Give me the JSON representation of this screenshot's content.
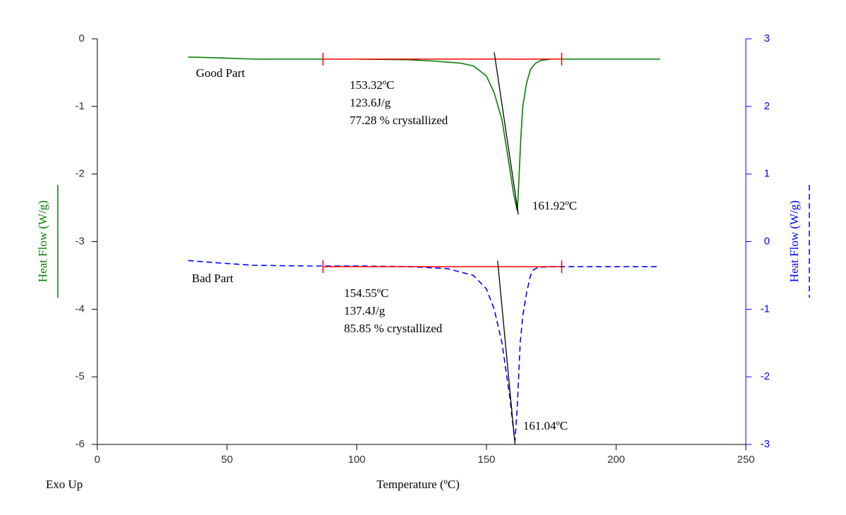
{
  "chart_data": {
    "type": "line",
    "x_label": "Temperature (ºC)",
    "y_label": "Heat Flow (W/g)",
    "y2_label": "Heat Flow (W/g)",
    "corner_note": "Exo Up",
    "xlim": [
      0,
      250
    ],
    "xticks": [
      0,
      50,
      100,
      150,
      200,
      250
    ],
    "ylim": [
      -6,
      0
    ],
    "yticks": [
      0,
      -1,
      -2,
      -3,
      -4,
      -5,
      -6
    ],
    "y2lim": [
      -3,
      3
    ],
    "y2ticks": [
      3,
      2,
      1,
      0,
      -1,
      -2,
      -3
    ],
    "series": [
      {
        "name": "Good Part",
        "color": "#008000",
        "line_style": "solid",
        "x": [
          35,
          45,
          60,
          80,
          100,
          120,
          130,
          140,
          145,
          150,
          153,
          156,
          158.5,
          160.5,
          161.9,
          162.5,
          163.2,
          164,
          165.5,
          167,
          169,
          171,
          175,
          190,
          217
        ],
        "values": [
          -0.27,
          -0.28,
          -0.3,
          -0.3,
          -0.3,
          -0.31,
          -0.33,
          -0.36,
          -0.4,
          -0.55,
          -0.8,
          -1.2,
          -1.8,
          -2.3,
          -2.55,
          -2.1,
          -1.5,
          -1.0,
          -0.65,
          -0.45,
          -0.36,
          -0.32,
          -0.3,
          -0.3,
          -0.3
        ]
      },
      {
        "name": "Bad Part",
        "color": "#0000ff",
        "line_style": "dashed",
        "axis": "y2",
        "x": [
          35,
          45,
          60,
          80,
          100,
          120,
          135,
          145,
          150,
          153,
          156,
          159,
          160.3,
          161,
          161.8,
          163,
          164,
          165.5,
          167,
          168,
          170,
          175,
          190,
          217
        ],
        "values": [
          -0.28,
          -0.31,
          -0.35,
          -0.36,
          -0.36,
          -0.37,
          -0.4,
          -0.5,
          -0.7,
          -1.0,
          -1.5,
          -2.3,
          -2.75,
          -2.95,
          -2.5,
          -1.5,
          -1.1,
          -0.75,
          -0.5,
          -0.42,
          -0.38,
          -0.37,
          -0.37,
          -0.37
        ]
      }
    ],
    "baselines": [
      {
        "color": "#ff0000",
        "x": [
          87,
          179
        ],
        "values": [
          -0.3,
          -0.3
        ]
      },
      {
        "color": "#ff0000",
        "axis": "y2",
        "x": [
          87,
          179
        ],
        "values": [
          -0.37,
          -0.37
        ]
      }
    ],
    "tangents": [
      {
        "color": "#000000",
        "x": [
          153,
          162.3
        ],
        "values": [
          -0.2,
          -2.6
        ]
      },
      {
        "color": "#000000",
        "x": [
          154.3,
          161
        ],
        "values": [
          -3.28,
          -6.0
        ]
      }
    ],
    "annotations": [
      "153.32ºC",
      "123.6J/g",
      "77.28 % crystallized",
      "161.92ºC",
      "154.55ºC",
      "137.4J/g",
      "85.85 % crystallized",
      "161.04ºC"
    ]
  }
}
